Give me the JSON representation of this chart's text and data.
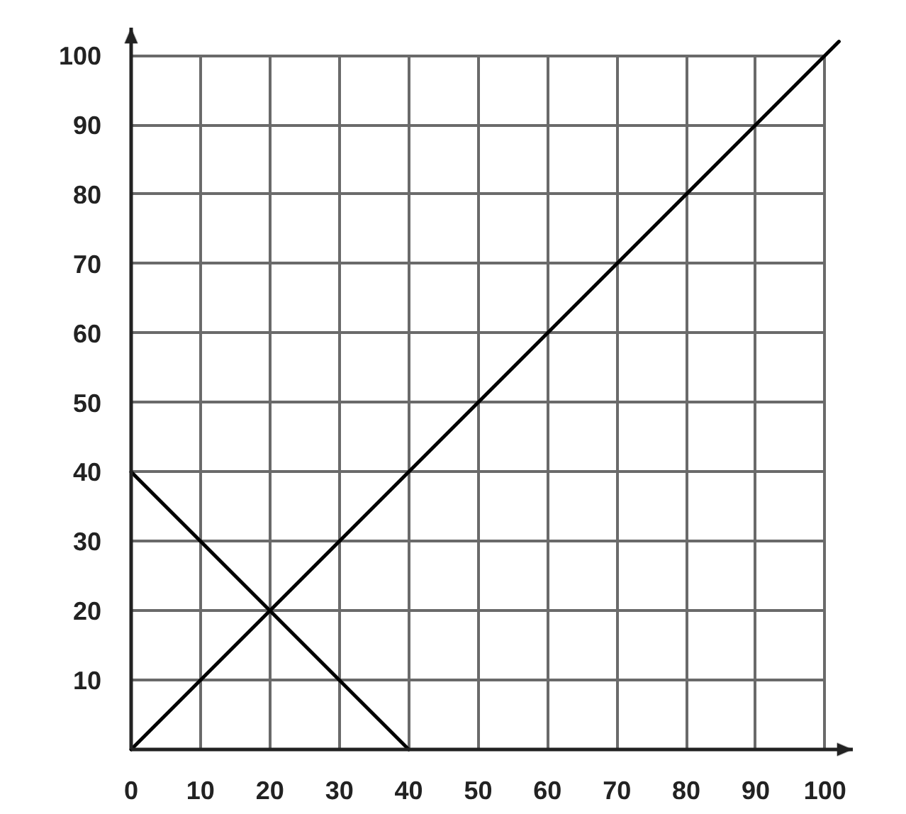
{
  "chart_data": {
    "type": "line",
    "series": [
      {
        "color": "#000000",
        "x": [
          0,
          102
        ],
        "values": [
          0,
          102
        ]
      },
      {
        "color": "#000000",
        "x": [
          0,
          40
        ],
        "values": [
          40,
          0
        ]
      }
    ],
    "xlim": [
      0,
      104
    ],
    "ylim": [
      0,
      104
    ],
    "xticks": [
      0,
      10,
      20,
      30,
      40,
      50,
      60,
      70,
      80,
      90,
      100
    ],
    "yticks": [
      10,
      20,
      30,
      40,
      50,
      60,
      70,
      80,
      90,
      100
    ],
    "grid": true,
    "marker": "none",
    "line_style": "solid"
  }
}
